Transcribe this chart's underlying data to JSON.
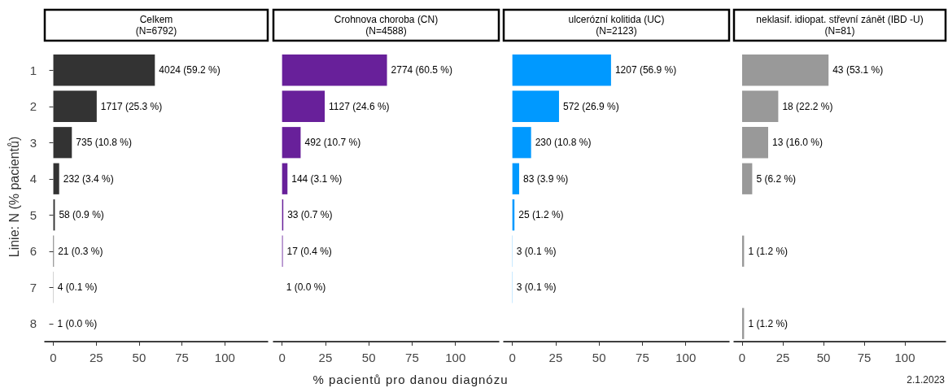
{
  "chart_data": [
    {
      "type": "bar",
      "orientation": "horizontal",
      "title": "Celkem\n(N=6792)",
      "ylabel": "Linie: N (% pacientů)",
      "categories": [
        "1",
        "2",
        "3",
        "4",
        "5",
        "6",
        "7",
        "8"
      ],
      "values": [
        59.2,
        25.3,
        10.8,
        3.4,
        0.9,
        0.3,
        0.1,
        0.0
      ],
      "value_labels": [
        "4024 (59.2 %)",
        "1717 (25.3 %)",
        "735 (10.8 %)",
        "232 (3.4 %)",
        "58 (0.9 %)",
        "21 (0.3 %)",
        "4 (0.1 %)",
        "1 (0.0 %)"
      ],
      "color": "#333333",
      "xlim": [
        -5,
        125
      ],
      "xticks": [
        0,
        25,
        50,
        75,
        100
      ],
      "grid": false
    },
    {
      "type": "bar",
      "orientation": "horizontal",
      "title": "Crohnova choroba (CN)\n(N=4588)",
      "xlabel": "% pacientů pro danou diagnózu",
      "categories": [
        "1",
        "2",
        "3",
        "4",
        "5",
        "6",
        "7",
        "8"
      ],
      "values": [
        60.5,
        24.6,
        10.7,
        3.1,
        0.7,
        0.4,
        0.0,
        null
      ],
      "value_labels": [
        "2774 (60.5 %)",
        "1127 (24.6 %)",
        "492 (10.7 %)",
        "144 (3.1 %)",
        "33 (0.7 %)",
        "17 (0.4 %)",
        "1 (0.0 %)",
        null
      ],
      "color": "#68209a",
      "xlim": [
        -5,
        125
      ],
      "xticks": [
        0,
        25,
        50,
        75,
        100
      ],
      "tick_labels": "x",
      "grid": false
    },
    {
      "type": "bar",
      "orientation": "horizontal",
      "title": "ulcerózní kolitida (UC)\n(N=2123)",
      "categories": [
        "1",
        "2",
        "3",
        "4",
        "5",
        "6",
        "7",
        "8"
      ],
      "values": [
        56.9,
        26.9,
        10.8,
        3.9,
        1.2,
        0.1,
        0.1,
        null
      ],
      "value_labels": [
        "1207 (56.9 %)",
        "572 (26.9 %)",
        "230 (10.8 %)",
        "83 (3.9 %)",
        "25 (1.2 %)",
        "3 (0.1 %)",
        "3 (0.1 %)",
        null
      ],
      "color": "#0099ff",
      "xlim": [
        -5,
        125
      ],
      "xticks": [
        0,
        25,
        50,
        75,
        100
      ],
      "tick_labels": "x",
      "grid": false
    },
    {
      "type": "bar",
      "orientation": "horizontal",
      "title": "neklasif. idiopat. střevní zánět (IBD -U)\n(N=81)",
      "categories": [
        "1",
        "2",
        "3",
        "4",
        "5",
        "6",
        "7",
        "8"
      ],
      "values": [
        53.1,
        22.2,
        16.0,
        6.2,
        null,
        1.2,
        null,
        1.2
      ],
      "value_labels": [
        "43 (53.1 %)",
        "18 (22.2 %)",
        "13 (16.0 %)",
        "5 (6.2 %)",
        null,
        "1 (1.2 %)",
        null,
        "1 (1.2 %)"
      ],
      "color": "#999999",
      "xlim": [
        -5,
        125
      ],
      "xticks": [
        0,
        25,
        50,
        75,
        100
      ],
      "tick_labels": "x",
      "grid": false,
      "annotations": [
        "2.1.2023"
      ]
    }
  ]
}
